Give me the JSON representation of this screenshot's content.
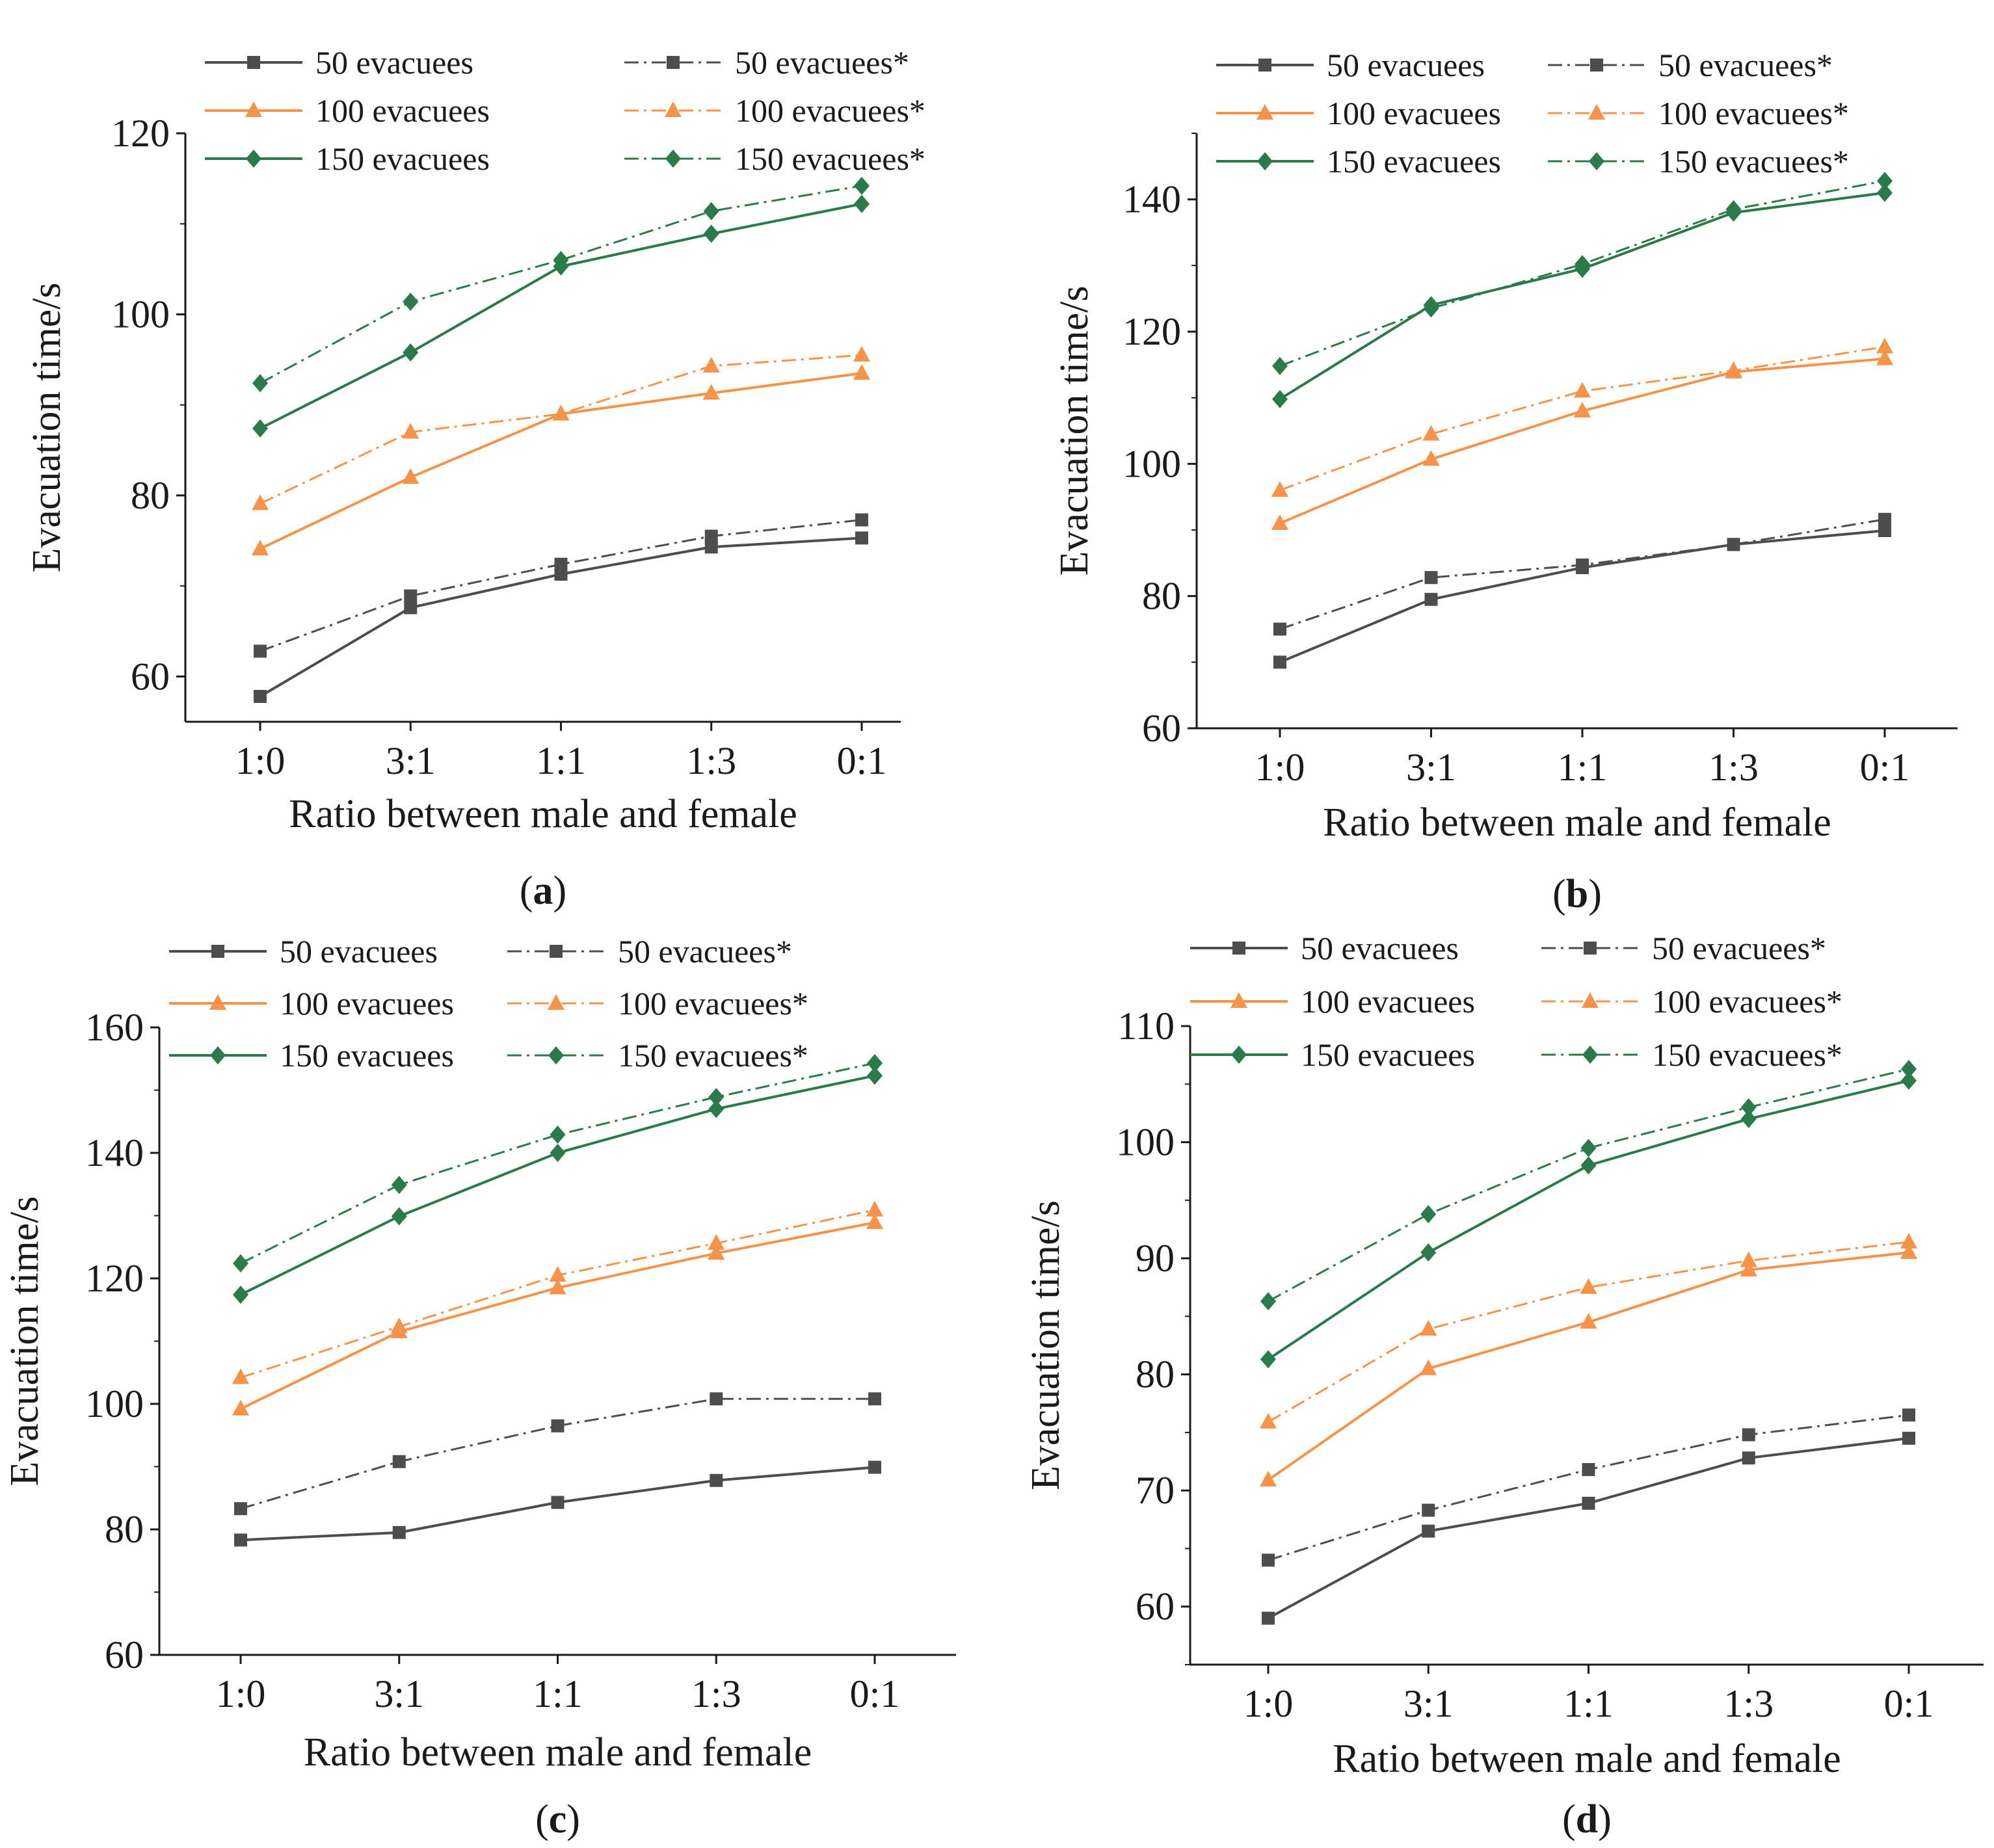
{
  "colors": {
    "series_50": "#4d4d4d",
    "series_100": "#f5934a",
    "series_150": "#2a7a4a",
    "axis": "#1a1a1a"
  },
  "legend": {
    "order": [
      "50 evacuees",
      "50 evacuees*",
      "100 evacuees",
      "100 evacuees*",
      "150 evacuees",
      "150 evacuees*"
    ]
  },
  "chart_data": [
    {
      "type": "line",
      "panel": "a",
      "caption_letter": "a",
      "caption": "(a)",
      "xlabel": "Ratio between male and female",
      "ylabel": "Evacuation time/s",
      "categories": [
        "1:0",
        "3:1",
        "1:1",
        "1:3",
        "0:1"
      ],
      "ylim": [
        55,
        120
      ],
      "yticks": [
        60,
        80,
        100,
        120
      ],
      "series": [
        {
          "name": "50 evacuees",
          "group": "50",
          "dashed": false,
          "marker": "square",
          "values": [
            57.8,
            67.6,
            71.3,
            74.3,
            75.3
          ]
        },
        {
          "name": "50 evacuees*",
          "group": "50",
          "dashed": true,
          "marker": "square",
          "values": [
            62.8,
            68.9,
            72.4,
            75.5,
            77.3
          ]
        },
        {
          "name": "100 evacuees",
          "group": "100",
          "dashed": false,
          "marker": "triangle",
          "values": [
            74.1,
            82.0,
            89.0,
            91.3,
            93.5
          ]
        },
        {
          "name": "100 evacuees*",
          "group": "100",
          "dashed": true,
          "marker": "triangle",
          "values": [
            79.1,
            87.0,
            89.0,
            94.3,
            95.5
          ]
        },
        {
          "name": "150 evacuees",
          "group": "150",
          "dashed": false,
          "marker": "diamond",
          "values": [
            87.4,
            95.8,
            105.3,
            108.9,
            112.2
          ]
        },
        {
          "name": "150 evacuees*",
          "group": "150",
          "dashed": true,
          "marker": "diamond",
          "values": [
            92.4,
            101.4,
            106.0,
            111.4,
            114.2
          ]
        }
      ]
    },
    {
      "type": "line",
      "panel": "b",
      "caption_letter": "b",
      "caption": "(b)",
      "xlabel": "Ratio between male and female",
      "ylabel": "Evacuation time/s",
      "categories": [
        "1:0",
        "3:1",
        "1:1",
        "1:3",
        "0:1"
      ],
      "ylim": [
        60,
        150
      ],
      "yticks": [
        60,
        80,
        100,
        120,
        140
      ],
      "series": [
        {
          "name": "50 evacuees",
          "group": "50",
          "dashed": false,
          "marker": "square",
          "values": [
            70.0,
            79.5,
            84.3,
            87.8,
            89.9
          ]
        },
        {
          "name": "50 evacuees*",
          "group": "50",
          "dashed": true,
          "marker": "square",
          "values": [
            75.0,
            82.8,
            84.7,
            87.8,
            91.6
          ]
        },
        {
          "name": "100 evacuees",
          "group": "100",
          "dashed": false,
          "marker": "triangle",
          "values": [
            91.0,
            100.7,
            108.0,
            113.9,
            115.9
          ]
        },
        {
          "name": "100 evacuees*",
          "group": "100",
          "dashed": true,
          "marker": "triangle",
          "values": [
            96.0,
            104.5,
            111.0,
            114.1,
            117.7
          ]
        },
        {
          "name": "150 evacuees",
          "group": "150",
          "dashed": false,
          "marker": "diamond",
          "values": [
            109.8,
            124.0,
            129.5,
            138.0,
            141.0
          ]
        },
        {
          "name": "150 evacuees*",
          "group": "150",
          "dashed": true,
          "marker": "diamond",
          "values": [
            114.8,
            123.5,
            130.2,
            138.5,
            142.8
          ]
        }
      ]
    },
    {
      "type": "line",
      "panel": "c",
      "caption_letter": "c",
      "caption": "(c)",
      "xlabel": "Ratio between male and female",
      "ylabel": "Evacuation time/s",
      "categories": [
        "1:0",
        "3:1",
        "1:1",
        "1:3",
        "0:1"
      ],
      "ylim": [
        60,
        160
      ],
      "yticks": [
        60,
        80,
        100,
        120,
        140,
        160
      ],
      "series": [
        {
          "name": "50 evacuees",
          "group": "50",
          "dashed": false,
          "marker": "square",
          "values": [
            78.3,
            79.5,
            84.3,
            87.8,
            89.9
          ]
        },
        {
          "name": "50 evacuees*",
          "group": "50",
          "dashed": true,
          "marker": "square",
          "values": [
            83.3,
            90.8,
            96.5,
            100.8,
            100.8
          ]
        },
        {
          "name": "100 evacuees",
          "group": "100",
          "dashed": false,
          "marker": "triangle",
          "values": [
            99.2,
            111.5,
            118.5,
            124.0,
            128.9
          ]
        },
        {
          "name": "100 evacuees*",
          "group": "100",
          "dashed": true,
          "marker": "triangle",
          "values": [
            104.2,
            112.3,
            120.5,
            125.6,
            130.9
          ]
        },
        {
          "name": "150 evacuees",
          "group": "150",
          "dashed": false,
          "marker": "diamond",
          "values": [
            117.4,
            129.9,
            140.0,
            147.0,
            152.3
          ]
        },
        {
          "name": "150 evacuees*",
          "group": "150",
          "dashed": true,
          "marker": "diamond",
          "values": [
            122.4,
            134.9,
            142.9,
            148.9,
            154.3
          ]
        }
      ]
    },
    {
      "type": "line",
      "panel": "d",
      "caption_letter": "d",
      "caption": "(d)",
      "xlabel": "Ratio between male and female",
      "ylabel": "Evacuation time/s",
      "categories": [
        "1:0",
        "3:1",
        "1:1",
        "1:3",
        "0:1"
      ],
      "ylim": [
        55,
        110
      ],
      "yticks": [
        60,
        70,
        80,
        90,
        100,
        110
      ],
      "series": [
        {
          "name": "50 evacuees",
          "group": "50",
          "dashed": false,
          "marker": "square",
          "values": [
            59.0,
            66.5,
            68.9,
            72.8,
            74.5
          ]
        },
        {
          "name": "50 evacuees*",
          "group": "50",
          "dashed": true,
          "marker": "square",
          "values": [
            64.0,
            68.3,
            71.8,
            74.8,
            76.5
          ]
        },
        {
          "name": "100 evacuees",
          "group": "100",
          "dashed": false,
          "marker": "triangle",
          "values": [
            70.9,
            80.5,
            84.5,
            89.0,
            90.5
          ]
        },
        {
          "name": "100 evacuees*",
          "group": "100",
          "dashed": true,
          "marker": "triangle",
          "values": [
            75.9,
            83.9,
            87.5,
            89.8,
            91.4
          ]
        },
        {
          "name": "150 evacuees",
          "group": "150",
          "dashed": false,
          "marker": "diamond",
          "values": [
            81.3,
            90.5,
            98.0,
            102.0,
            105.3
          ]
        },
        {
          "name": "150 evacuees*",
          "group": "150",
          "dashed": true,
          "marker": "diamond",
          "values": [
            86.3,
            93.8,
            99.5,
            103.0,
            106.3
          ]
        }
      ]
    }
  ]
}
